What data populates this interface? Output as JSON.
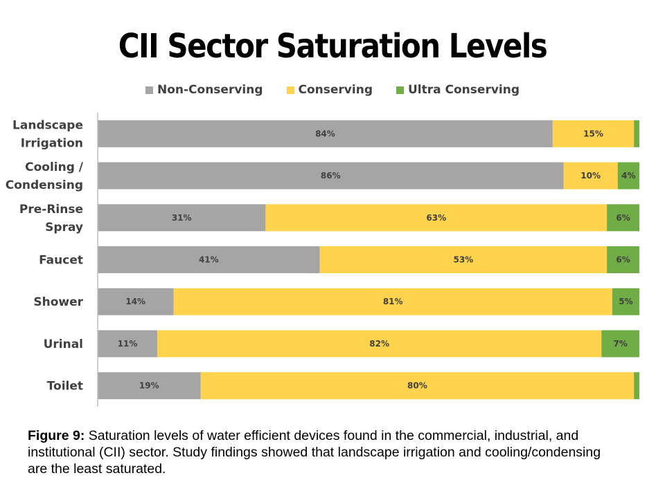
{
  "title": "CII Sector Saturation Levels",
  "caption": {
    "label": "Figure 9:",
    "text": " Saturation levels of water efficient devices found in the commercial, industrial, and institutional (CII) sector. Study findings showed that landscape irrigation and cooling/condensing are the least saturated."
  },
  "chart_data": {
    "type": "bar",
    "orientation": "horizontal",
    "stacked": true,
    "categories": [
      [
        "Landscape",
        "Irrigation"
      ],
      [
        "Cooling /",
        "Condensing"
      ],
      [
        "Pre-Rinse",
        "Spray"
      ],
      [
        "Faucet"
      ],
      [
        "Shower"
      ],
      [
        "Urinal"
      ],
      [
        "Toilet"
      ]
    ],
    "series": [
      {
        "name": "Non-Conserving",
        "color": "#a5a5a5",
        "values": [
          84,
          86,
          31,
          41,
          14,
          11,
          19
        ],
        "labels": [
          "84%",
          "86%",
          "31%",
          "41%",
          "14%",
          "11%",
          "19%"
        ]
      },
      {
        "name": "Conserving",
        "color": "#ffd34d",
        "values": [
          15,
          10,
          63,
          53,
          81,
          82,
          80
        ],
        "labels": [
          "15%",
          "10%",
          "63%",
          "53%",
          "81%",
          "82%",
          "80%"
        ]
      },
      {
        "name": "Ultra Conserving",
        "color": "#70ad47",
        "values": [
          1,
          4,
          6,
          6,
          5,
          7,
          1
        ],
        "labels": [
          "",
          "4%",
          "6%",
          "6%",
          "5%",
          "7%",
          ""
        ]
      }
    ],
    "xlim": [
      0,
      100
    ],
    "grid": false,
    "legend_position": "top"
  }
}
